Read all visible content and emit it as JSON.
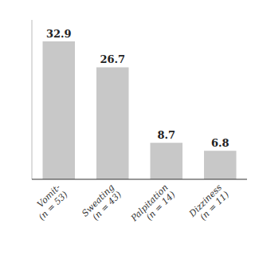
{
  "chart_data": {
    "type": "bar",
    "categories": [
      "Vomit-\n(n = 53)",
      "Sweating\n(n = 43)",
      "Palpitation\n(n = 14)",
      "Dizziness\n(n = 11)"
    ],
    "values": [
      32.9,
      26.7,
      8.7,
      6.8
    ],
    "color": "#c8c8c8",
    "ylim": [
      0,
      38
    ],
    "data_labels": true,
    "tick_labels": "x"
  }
}
